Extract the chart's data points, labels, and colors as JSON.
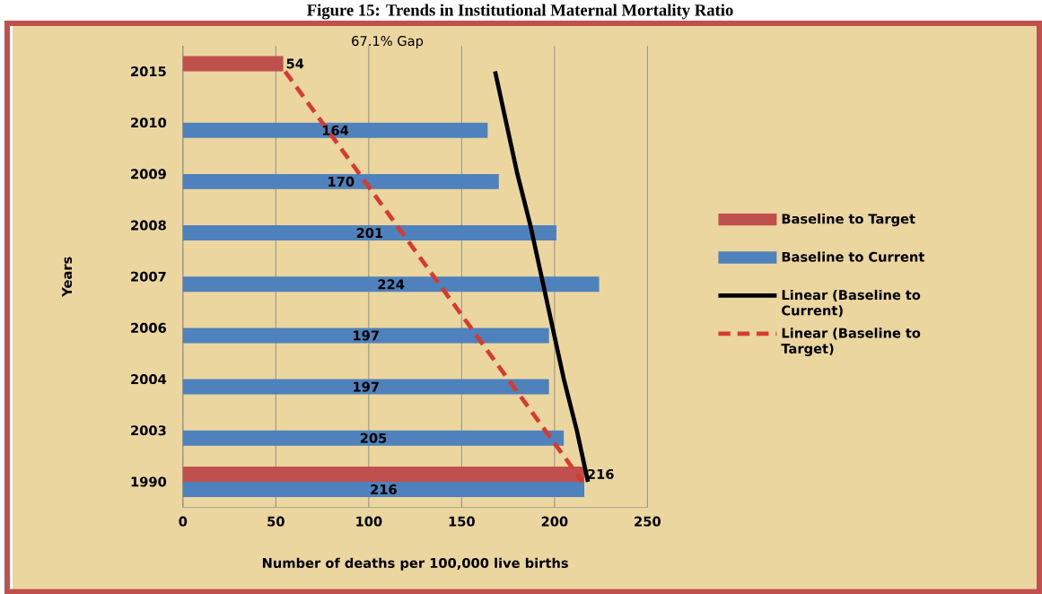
{
  "chart_data": {
    "type": "bar",
    "orientation": "horizontal",
    "title": "Figure 15: Trends in Institutional Maternal Mortality Ratio",
    "xlabel": "Number of deaths per 100,000 live births",
    "ylabel": "Years",
    "categories": [
      "2015",
      "2010",
      "2009",
      "2008",
      "2007",
      "2006",
      "2004",
      "2003",
      "1990"
    ],
    "series": [
      {
        "name": "Baseline to Target",
        "color": "#c0504d",
        "values": [
          54,
          null,
          null,
          null,
          null,
          null,
          null,
          null,
          216
        ],
        "value_labels": [
          "54",
          null,
          null,
          null,
          null,
          null,
          null,
          null,
          "216"
        ]
      },
      {
        "name": "Baseline to Current",
        "color": "#4f81bd",
        "values": [
          null,
          164,
          170,
          201,
          224,
          197,
          197,
          205,
          216
        ],
        "value_labels": [
          null,
          "164",
          "170",
          "201",
          "224",
          "197",
          "197",
          "205",
          "216"
        ]
      },
      {
        "name": "Linear (Baseline to Current)",
        "type": "line",
        "color": "#000000",
        "line_style": "solid",
        "values": [
          168,
          174,
          180,
          187,
          193,
          199,
          205,
          212,
          218
        ]
      },
      {
        "name": "Linear (Baseline to Target)",
        "type": "line",
        "color": "#d63b30",
        "line_style": "dashed",
        "values": [
          55,
          75,
          95,
          115,
          135,
          155,
          175,
          195,
          215
        ]
      }
    ],
    "xlim": [
      0,
      250
    ],
    "xticks": [
      0,
      50,
      100,
      150,
      200,
      250
    ],
    "grid": "x",
    "legend": "right",
    "marker": "none",
    "annotations": [
      "67.1% Gap"
    ]
  }
}
